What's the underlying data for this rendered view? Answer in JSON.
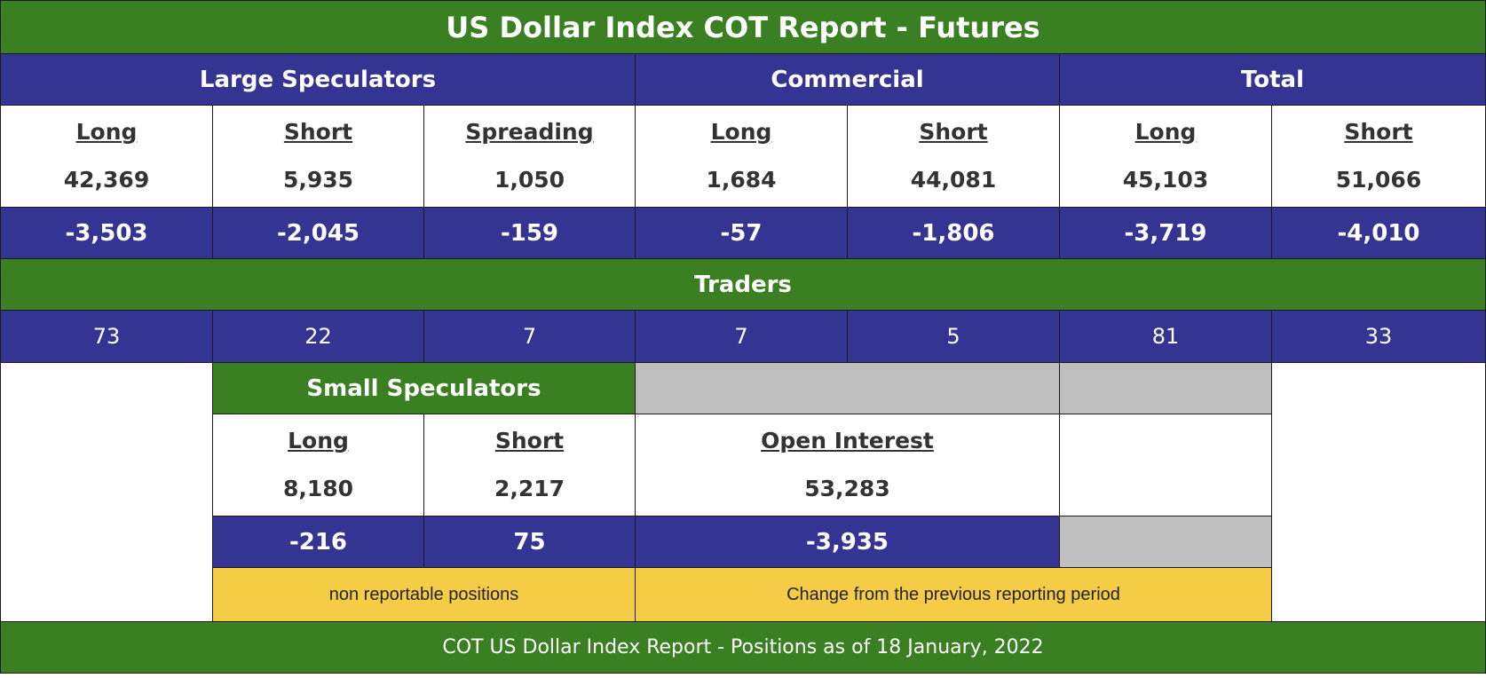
{
  "title": "US Dollar Index COT Report - Futures",
  "groups": {
    "large_speculators": "Large Speculators",
    "commercial": "Commercial",
    "total": "Total"
  },
  "labels": {
    "long": "Long",
    "short": "Short",
    "spreading": "Spreading"
  },
  "positions": {
    "ls_long": "42,369",
    "ls_short": "5,935",
    "ls_spreading": "1,050",
    "com_long": "1,684",
    "com_short": "44,081",
    "tot_long": "45,103",
    "tot_short": "51,066"
  },
  "changes": {
    "ls_long": "-3,503",
    "ls_short": "-2,045",
    "ls_spreading": "-159",
    "com_long": "-57",
    "com_short": "-1,806",
    "tot_long": "-3,719",
    "tot_short": "-4,010"
  },
  "traders_label": "Traders",
  "traders": {
    "ls_long": "73",
    "ls_short": "22",
    "ls_spreading": "7",
    "com_long": "7",
    "com_short": "5",
    "tot_long": "81",
    "tot_short": "33"
  },
  "small_speculators": {
    "title": "Small Speculators",
    "long_label": "Long",
    "short_label": "Short",
    "long": "8,180",
    "short": "2,217",
    "long_change": "-216",
    "short_change": "75",
    "note": "non reportable positions"
  },
  "open_interest": {
    "label": "Open Interest",
    "value": "53,283",
    "change": "-3,935",
    "note": "Change from the previous reporting period"
  },
  "footer": "COT US Dollar Index Report - Positions as of 18 January, 2022",
  "colors": {
    "green": "#3a7f21",
    "blue": "#343593",
    "gray": "#bfbfbf",
    "yellow": "#f5cc46"
  }
}
